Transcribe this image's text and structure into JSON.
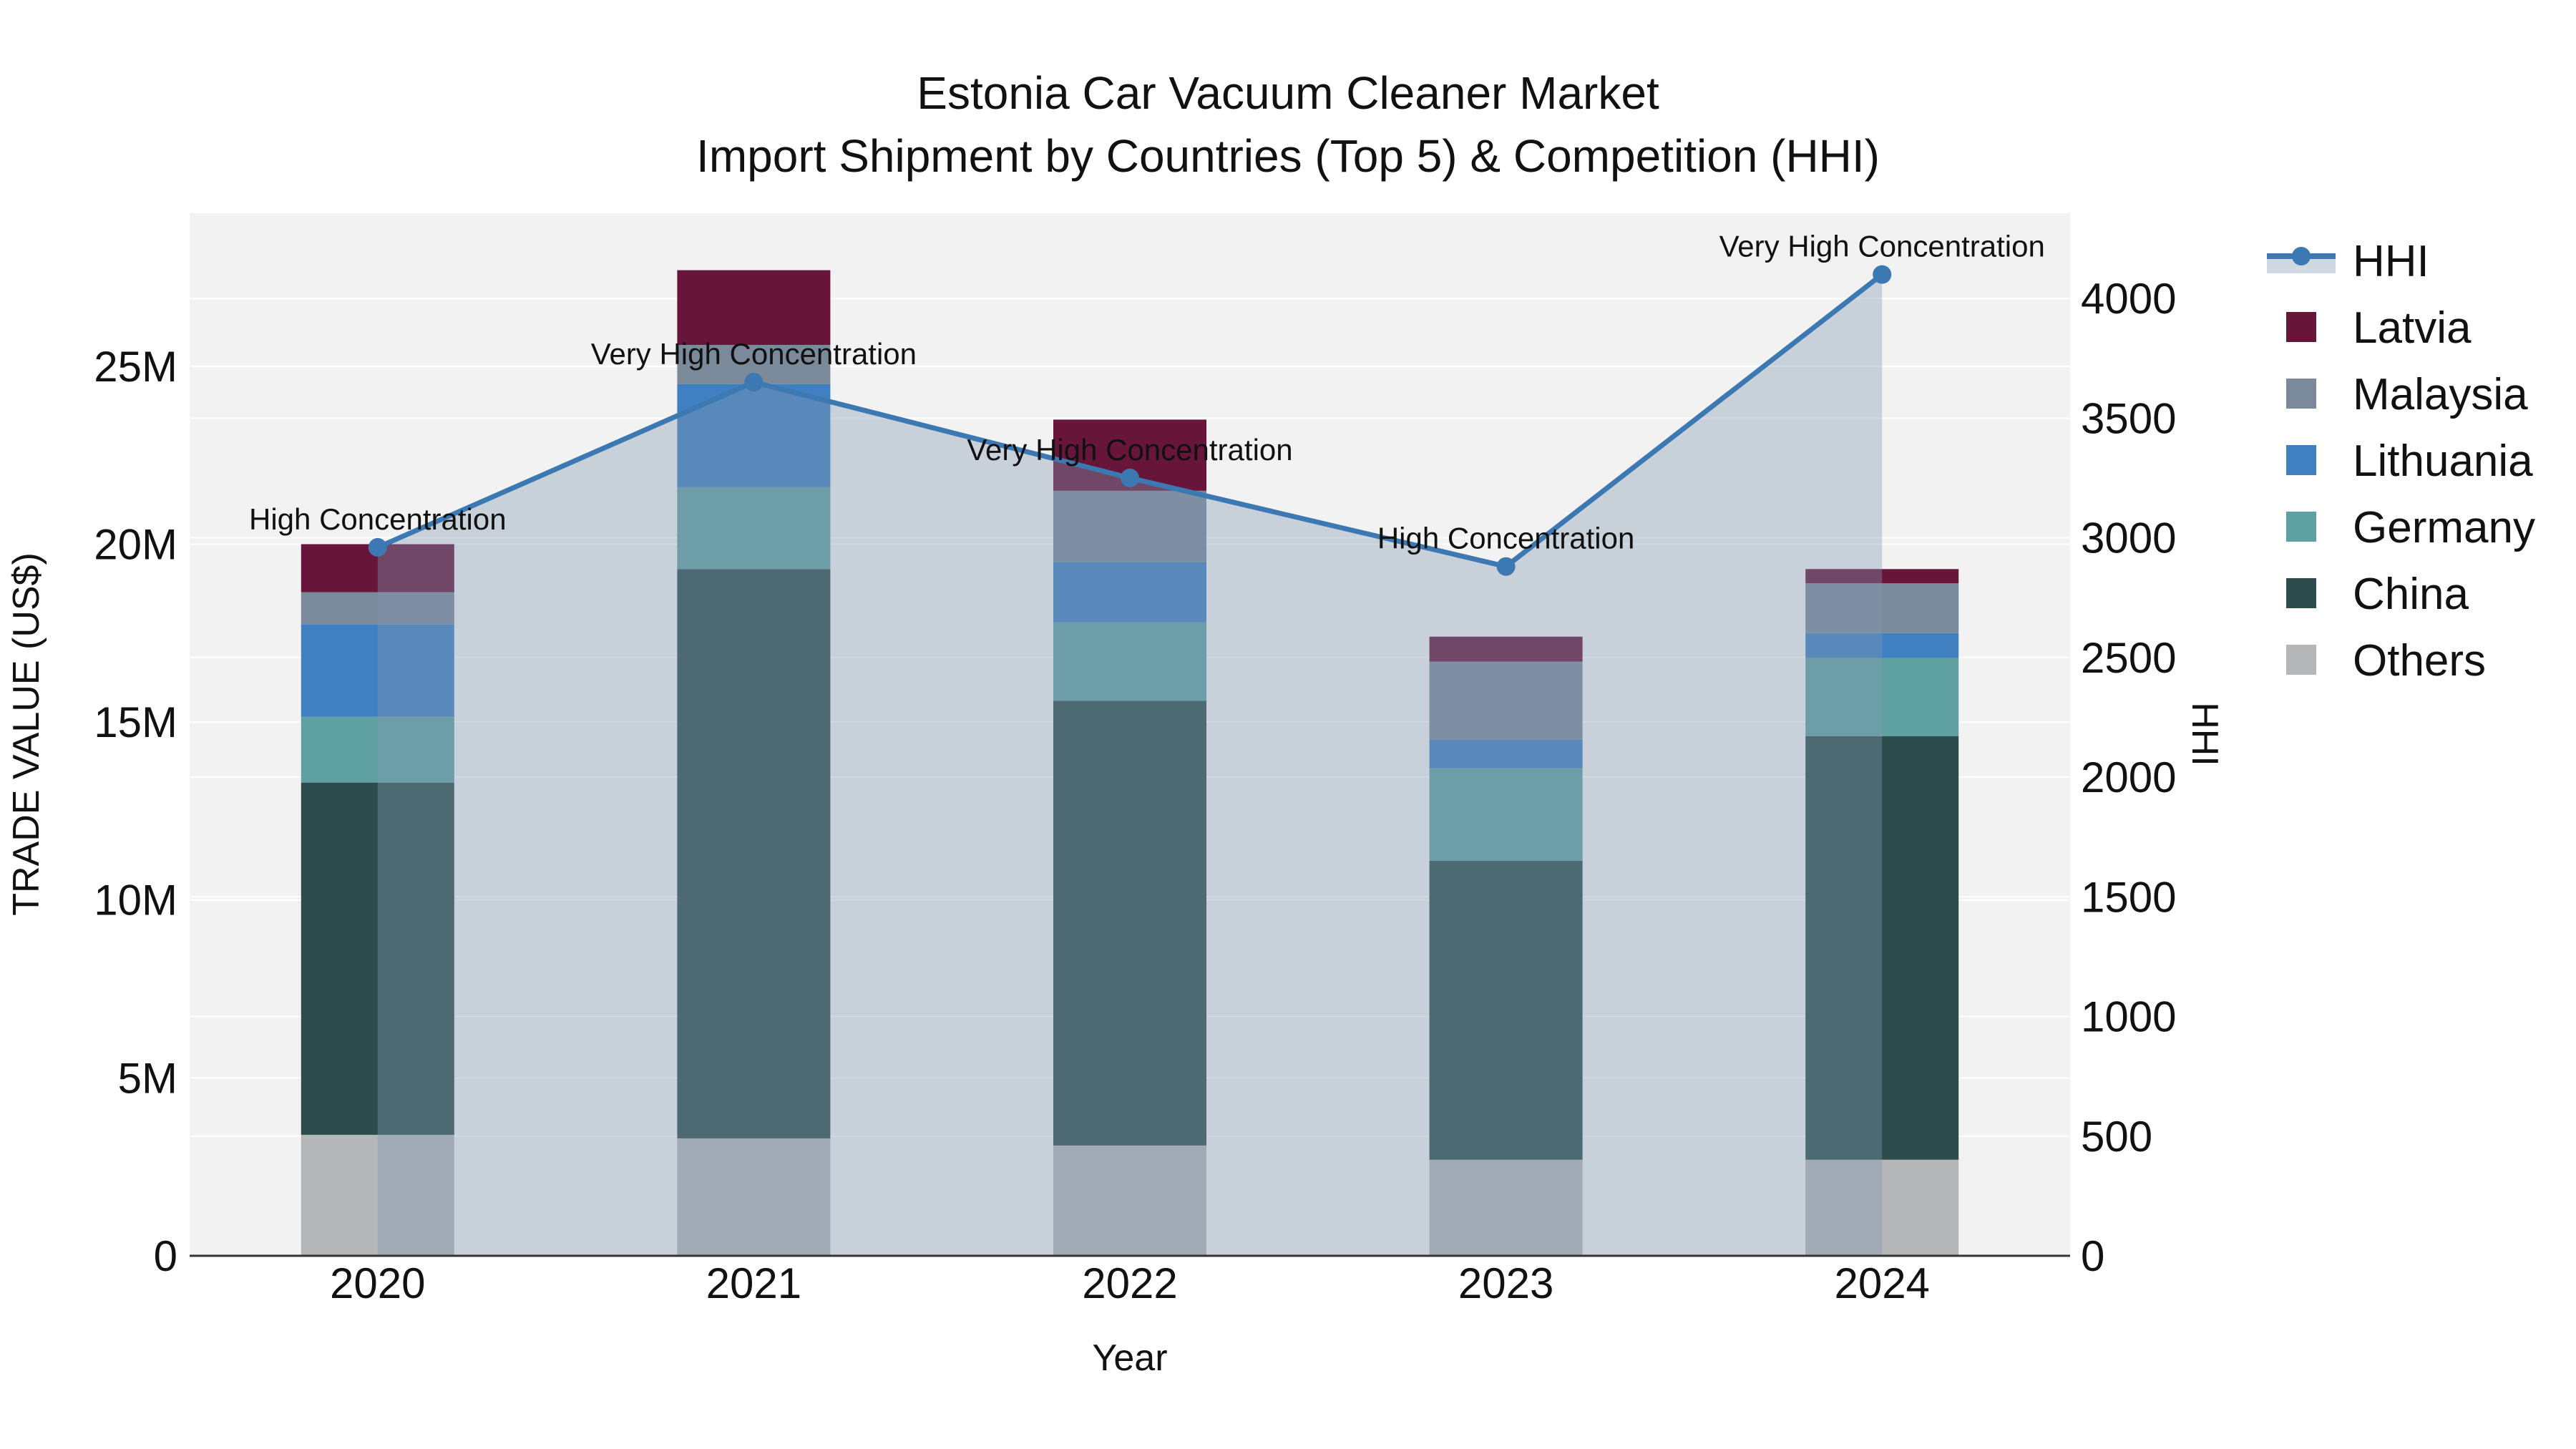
{
  "title": {
    "line1": "Estonia Car Vacuum Cleaner Market",
    "line2": "Import Shipment by Countries (Top 5) & Competition (HHI)"
  },
  "axes": {
    "x": {
      "title": "Year",
      "ticks": [
        "2020",
        "2021",
        "2022",
        "2023",
        "2024"
      ]
    },
    "y_left": {
      "title": "TRADE VALUE (US$)",
      "ticks": [
        {
          "label": "0",
          "value": 0
        },
        {
          "label": "5M",
          "value": 5
        },
        {
          "label": "10M",
          "value": 10
        },
        {
          "label": "15M",
          "value": 15
        },
        {
          "label": "20M",
          "value": 20
        },
        {
          "label": "25M",
          "value": 25
        }
      ]
    },
    "y_right": {
      "title": "HHI",
      "ticks": [
        {
          "label": "0",
          "value": 0
        },
        {
          "label": "500",
          "value": 500
        },
        {
          "label": "1000",
          "value": 1000
        },
        {
          "label": "1500",
          "value": 1500
        },
        {
          "label": "2000",
          "value": 2000
        },
        {
          "label": "2500",
          "value": 2500
        },
        {
          "label": "3000",
          "value": 3000
        },
        {
          "label": "3500",
          "value": 3500
        },
        {
          "label": "4000",
          "value": 4000
        }
      ]
    }
  },
  "legend": [
    {
      "label": "HHI",
      "symbol": "line-marker",
      "color": "#3c78b2"
    },
    {
      "label": "Latvia",
      "symbol": "square",
      "color": "#67163a"
    },
    {
      "label": "Malaysia",
      "symbol": "square",
      "color": "#7b8a9b"
    },
    {
      "label": "Lithuania",
      "symbol": "square",
      "color": "#4080c0"
    },
    {
      "label": "Germany",
      "symbol": "square",
      "color": "#5fa0a2"
    },
    {
      "label": "China",
      "symbol": "square",
      "color": "#2d4d4d"
    },
    {
      "label": "Others",
      "symbol": "square",
      "color": "#b4b6b8"
    }
  ],
  "colors": {
    "plot_bg": "#f2f2f2",
    "grid": "#ffffff",
    "axis_line": "#333333",
    "line": "#3c78b2",
    "area": "rgba(132,153,177,0.38)",
    "text": "#111111"
  },
  "chart_data": {
    "type": [
      "stacked-bar",
      "line"
    ],
    "title": "Estonia Car Vacuum Cleaner Market — Import Shipment by Countries (Top 5) & Competition (HHI)",
    "xlabel": "Year",
    "ylabel_left": "TRADE VALUE (US$)",
    "ylabel_right": "HHI",
    "unit_left": "million US$",
    "categories": [
      "2020",
      "2021",
      "2022",
      "2023",
      "2024"
    ],
    "ylim_left": [
      0,
      29.3
    ],
    "ylim_right": [
      0,
      4356
    ],
    "series": [
      {
        "name": "Others",
        "color": "#b4b6b8",
        "values": [
          3.4,
          3.3,
          3.1,
          2.7,
          2.7
        ]
      },
      {
        "name": "China",
        "color": "#2d4d4d",
        "values": [
          9.9,
          16.0,
          12.5,
          8.4,
          11.9
        ]
      },
      {
        "name": "Germany",
        "color": "#5fa0a2",
        "values": [
          1.85,
          2.3,
          2.2,
          2.6,
          2.2
        ]
      },
      {
        "name": "Lithuania",
        "color": "#4080c0",
        "values": [
          2.6,
          2.9,
          1.7,
          0.8,
          0.7
        ]
      },
      {
        "name": "Malaysia",
        "color": "#7b8a9b",
        "values": [
          0.9,
          1.1,
          2.0,
          2.2,
          1.4
        ]
      },
      {
        "name": "Latvia",
        "color": "#67163a",
        "values": [
          1.35,
          2.1,
          2.0,
          0.7,
          0.4
        ]
      }
    ],
    "hhi": {
      "name": "HHI",
      "axis": "right",
      "values": [
        2960,
        3650,
        3250,
        2880,
        4100
      ]
    },
    "annotations": [
      {
        "category": "2020",
        "text": "High Concentration"
      },
      {
        "category": "2021",
        "text": "Very High Concentration"
      },
      {
        "category": "2022",
        "text": "Very High Concentration"
      },
      {
        "category": "2023",
        "text": "High Concentration"
      },
      {
        "category": "2024",
        "text": "Very High Concentration"
      }
    ]
  }
}
